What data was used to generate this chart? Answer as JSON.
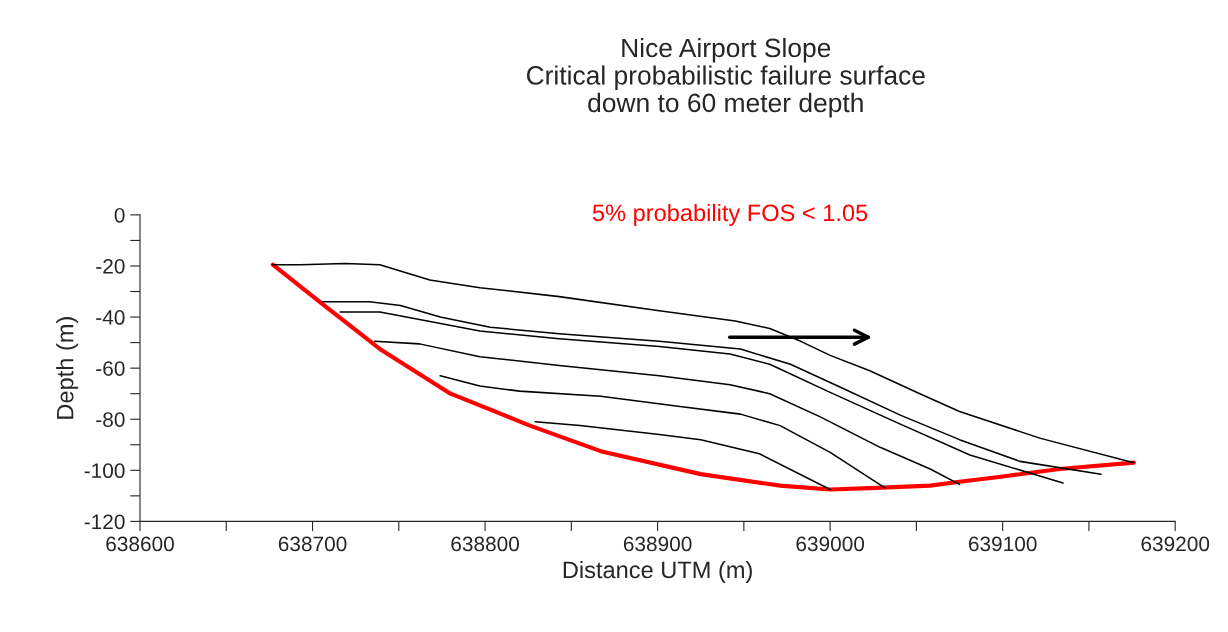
{
  "chart_data": {
    "type": "line",
    "title": "Nice Airport Slope\nCritical probabilistic failure surface\ndown to 60 meter depth",
    "xlabel": "Distance UTM (m)",
    "ylabel": "Depth (m)",
    "annotations": [
      "5% probability FOS < 1.05"
    ],
    "series": [
      {
        "color": "#ff0000",
        "x": [
          638677,
          638706,
          638739,
          638780,
          638826,
          638867,
          638925,
          638971,
          639000,
          639023,
          639058,
          639075,
          639099,
          639133,
          639176
        ],
        "values": [
          -19.5,
          -35,
          -52.5,
          -70,
          -82.5,
          -92.5,
          -101.5,
          -106,
          -107.5,
          -107,
          -106,
          -104.5,
          -102.5,
          -99.5,
          -97
        ]
      },
      {
        "color": "#000000",
        "x": [
          638677,
          638693,
          638719,
          638739,
          638768,
          638797,
          638843,
          638901,
          638945,
          638965,
          638983,
          639000,
          639023,
          639052,
          639075,
          639122,
          639176
        ],
        "values": [
          -19.5,
          -19.5,
          -19,
          -19.5,
          -25.5,
          -28.5,
          -32,
          -37.5,
          -41.5,
          -44.5,
          -49.5,
          -55,
          -61,
          -70,
          -77,
          -87.5,
          -97
        ]
      },
      {
        "color": "#000000",
        "x": [
          638706,
          638733,
          638751,
          638774,
          638803,
          638843,
          638901,
          638948,
          638977,
          639006,
          639041,
          639075,
          639110,
          639157
        ],
        "values": [
          -34,
          -34,
          -35.5,
          -40,
          -44,
          -46.5,
          -49.5,
          -52.5,
          -58.5,
          -67.5,
          -78.5,
          -88,
          -96.5,
          -101.5
        ]
      },
      {
        "color": "#000000",
        "x": [
          638716,
          638739,
          638762,
          638797,
          638843,
          638901,
          638942,
          638965,
          639000,
          639041,
          639081,
          639135
        ],
        "values": [
          -38,
          -38,
          -41,
          -45.5,
          -48.5,
          -51.5,
          -54.5,
          -58.5,
          -69.5,
          -82,
          -94,
          -105
        ]
      },
      {
        "color": "#000000",
        "x": [
          638736,
          638762,
          638797,
          638843,
          638901,
          638942,
          638965,
          638994,
          639029,
          639058,
          639075
        ],
        "values": [
          -49.5,
          -50.5,
          -55.5,
          -59,
          -63,
          -66.5,
          -70,
          -79,
          -91,
          -99.5,
          -105.5
        ]
      },
      {
        "color": "#000000",
        "x": [
          638774,
          638797,
          638820,
          638867,
          638913,
          638948,
          638971,
          639000,
          639032
        ],
        "values": [
          -63,
          -67,
          -69,
          -71,
          -75,
          -78,
          -82.5,
          -93,
          -107
        ]
      },
      {
        "color": "#000000",
        "x": [
          638829,
          638855,
          638901,
          638925,
          638959,
          639000
        ],
        "values": [
          -81,
          -82.5,
          -86,
          -88,
          -93.5,
          -107.5
        ]
      }
    ],
    "xlim": [
      638600,
      639200
    ],
    "xticks": [
      638600,
      {
        "value": 638650,
        "label": null
      },
      638700,
      {
        "value": 638750,
        "label": null
      },
      638800,
      {
        "value": 638850,
        "label": null
      },
      638900,
      {
        "value": 638950,
        "label": null
      },
      639000,
      {
        "value": 639050,
        "label": null
      },
      639100,
      {
        "value": 639150,
        "label": null
      },
      639200
    ],
    "ylim": [
      -120,
      0
    ],
    "yticks": [
      -120,
      {
        "value": -110,
        "label": null
      },
      -100,
      {
        "value": -90,
        "label": null
      },
      -80,
      {
        "value": -70,
        "label": null
      },
      -60,
      {
        "value": -50,
        "label": null
      },
      -40,
      {
        "value": -30,
        "label": null
      },
      -20,
      {
        "value": -10,
        "label": null
      },
      0
    ],
    "grid": false,
    "legend": false,
    "marker": "none",
    "line_style": "solid"
  }
}
